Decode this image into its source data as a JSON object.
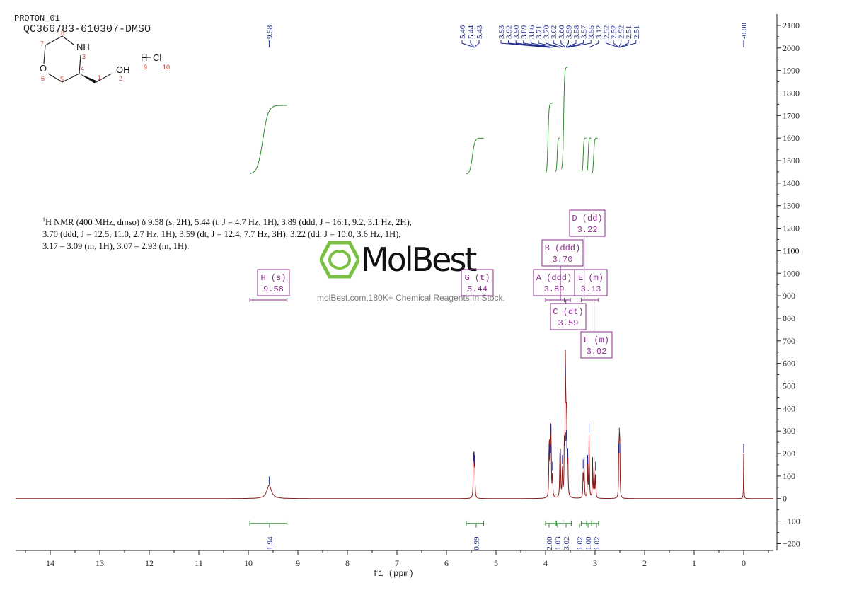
{
  "header": {
    "experiment": "PROTON_01",
    "sample": "QC366783-610307-DMSO"
  },
  "structure": {
    "atoms": [
      {
        "label": "NH",
        "num": "3"
      },
      {
        "label": "O",
        "num": "6"
      },
      {
        "label": "OH",
        "num": "2"
      },
      {
        "label": "H",
        "num": "9"
      },
      {
        "label": "Cl",
        "num": "10"
      }
    ],
    "numbers": [
      "8",
      "7",
      "5",
      "4",
      "1"
    ]
  },
  "description": {
    "sup": "1",
    "line1": "H NMR (400 MHz, dmso) δ 9.58 (s, 2H), 5.44 (t, J = 4.7 Hz, 1H), 3.89 (ddd, J = 16.1, 9.2, 3.1 Hz, 2H),",
    "line2": "3.70 (ddd, J = 12.5, 11.0, 2.7 Hz, 1H), 3.59 (dt, J = 12.4, 7.7 Hz, 3H), 3.22 (dd, J = 10.0, 3.6 Hz, 1H),",
    "line3": "3.17 – 3.09 (m, 1H), 3.07 – 2.93 (m, 1H)."
  },
  "watermark": {
    "brand": "MolBest",
    "tagline": "molBest.com,180K+ Chemical Reagents,In Stock."
  },
  "colors": {
    "spectrum": "#8b1a1a",
    "peak_labels": "#1e2a8c",
    "integrals": "#2e8b2e",
    "multiplets": "#8b2d8b",
    "logo": "#7ac143"
  },
  "chart_data": {
    "type": "line",
    "title": "",
    "xlabel": "f1 (ppm)",
    "ylabel": "",
    "xlim": [
      14.7,
      -0.6
    ],
    "ylim": [
      -230,
      2150
    ],
    "x_ticks": [
      14,
      13,
      12,
      11,
      10,
      9,
      8,
      7,
      6,
      5,
      4,
      3,
      2,
      1,
      0
    ],
    "y_ticks": [
      -200,
      -100,
      0,
      100,
      200,
      300,
      400,
      500,
      600,
      700,
      800,
      900,
      1000,
      1100,
      1200,
      1300,
      1400,
      1500,
      1600,
      1700,
      1800,
      1900,
      2000,
      2100
    ],
    "peaks": [
      {
        "ppm": 9.58,
        "height": 60,
        "width": 0.055
      },
      {
        "ppm": 5.455,
        "height": 160,
        "width": 0.006
      },
      {
        "ppm": 5.445,
        "height": 165,
        "width": 0.006
      },
      {
        "ppm": 5.43,
        "height": 150,
        "width": 0.006
      },
      {
        "ppm": 3.93,
        "height": 170,
        "width": 0.006
      },
      {
        "ppm": 3.92,
        "height": 190,
        "width": 0.006
      },
      {
        "ppm": 3.9,
        "height": 200,
        "width": 0.006
      },
      {
        "ppm": 3.89,
        "height": 285,
        "width": 0.006
      },
      {
        "ppm": 3.86,
        "height": 120,
        "width": 0.006
      },
      {
        "ppm": 3.71,
        "height": 160,
        "width": 0.006
      },
      {
        "ppm": 3.7,
        "height": 170,
        "width": 0.006
      },
      {
        "ppm": 3.66,
        "height": 150,
        "width": 0.006
      },
      {
        "ppm": 3.62,
        "height": 230,
        "width": 0.006
      },
      {
        "ppm": 3.6,
        "height": 540,
        "width": 0.006
      },
      {
        "ppm": 3.59,
        "height": 250,
        "width": 0.006
      },
      {
        "ppm": 3.58,
        "height": 260,
        "width": 0.006
      },
      {
        "ppm": 3.57,
        "height": 220,
        "width": 0.006
      },
      {
        "ppm": 3.55,
        "height": 180,
        "width": 0.006
      },
      {
        "ppm": 3.24,
        "height": 130,
        "width": 0.006
      },
      {
        "ppm": 3.22,
        "height": 140,
        "width": 0.006
      },
      {
        "ppm": 3.15,
        "height": 150,
        "width": 0.006
      },
      {
        "ppm": 3.12,
        "height": 290,
        "width": 0.006
      },
      {
        "ppm": 3.05,
        "height": 140,
        "width": 0.006
      },
      {
        "ppm": 3.02,
        "height": 145,
        "width": 0.006
      },
      {
        "ppm": 2.99,
        "height": 120,
        "width": 0.006
      },
      {
        "ppm": 2.52,
        "height": 200,
        "width": 0.005
      },
      {
        "ppm": 2.51,
        "height": 270,
        "width": 0.005
      },
      {
        "ppm": 2.5,
        "height": 200,
        "width": 0.005
      },
      {
        "ppm": 0.0,
        "height": 200,
        "width": 0.004
      }
    ],
    "peak_labels": [
      {
        "group": "a",
        "values": [
          "9.58"
        ]
      },
      {
        "group": "b",
        "values": [
          "5.46",
          "5.44",
          "5.43"
        ]
      },
      {
        "group": "c",
        "values": [
          "3.93",
          "3.92",
          "3.90",
          "3.89",
          "3.86",
          "3.71",
          "3.70",
          "3.62",
          "3.60",
          "3.59",
          "3.58",
          "3.57",
          "3.55",
          "3.12",
          "2.52",
          "2.52",
          "2.52",
          "2.51",
          "2.51"
        ]
      },
      {
        "group": "d",
        "values": [
          "-0.00"
        ]
      }
    ],
    "integrals": [
      {
        "from": 9.97,
        "to": 9.22,
        "value": "1.94"
      },
      {
        "from": 5.6,
        "to": 5.25,
        "value": "0.99"
      },
      {
        "from": 4.0,
        "to": 3.8,
        "value": "2.00"
      },
      {
        "from": 3.78,
        "to": 3.65,
        "value": "1.03"
      },
      {
        "from": 3.65,
        "to": 3.48,
        "value": "3.02"
      },
      {
        "from": 3.28,
        "to": 3.17,
        "value": "1.02"
      },
      {
        "from": 3.17,
        "to": 3.07,
        "value": "1.00"
      },
      {
        "from": 3.07,
        "to": 2.93,
        "value": "1.02"
      }
    ],
    "multiplets": [
      {
        "id": "H",
        "type": "(s)",
        "shift": "9.58"
      },
      {
        "id": "G",
        "type": "(t)",
        "shift": "5.44"
      },
      {
        "id": "A",
        "type": "(ddd)",
        "shift": "3.89"
      },
      {
        "id": "B",
        "type": "(ddd)",
        "shift": "3.70"
      },
      {
        "id": "C",
        "type": "(dt)",
        "shift": "3.59"
      },
      {
        "id": "D",
        "type": "(dd)",
        "shift": "3.22"
      },
      {
        "id": "E",
        "type": "(m)",
        "shift": "3.13"
      },
      {
        "id": "F",
        "type": "(m)",
        "shift": "3.02"
      }
    ]
  }
}
